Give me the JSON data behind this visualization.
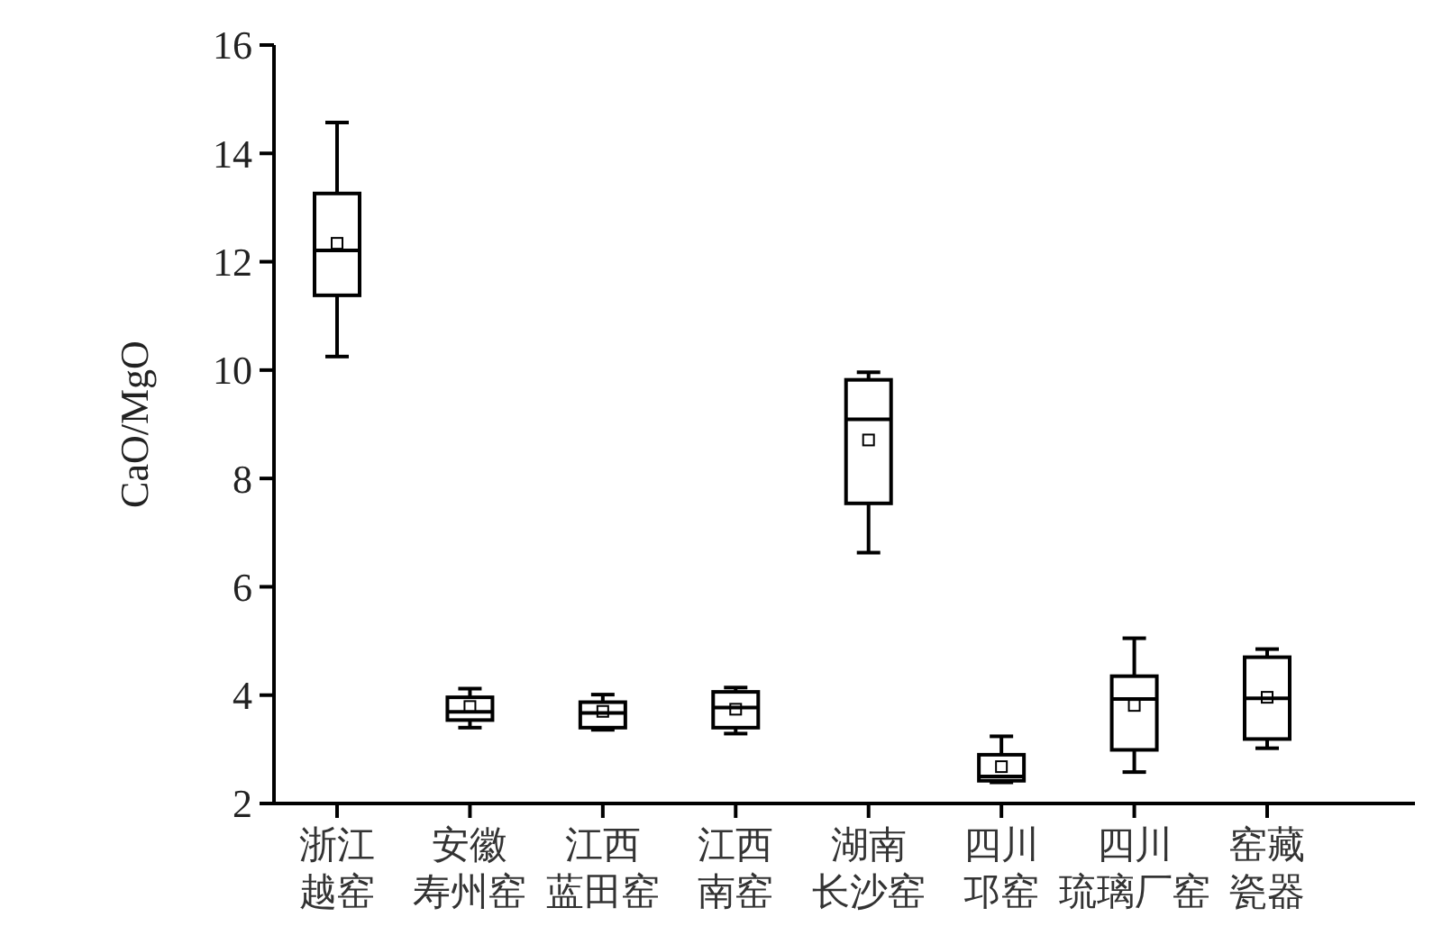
{
  "chart_data": {
    "type": "box",
    "ylabel": "CaO/MgO",
    "categories": [
      "浙江越窑",
      "安徽寿州窑",
      "江西蓝田窑",
      "江西南窑",
      "湖南长沙窑",
      "四川邛窑",
      "四川琉璃厂窑",
      "窑藏瓷器"
    ],
    "boxes": [
      {
        "low": 10.25,
        "q1": 11.38,
        "median": 12.21,
        "q3": 13.26,
        "high": 14.57,
        "mean": 12.34
      },
      {
        "low": 3.4,
        "q1": 3.54,
        "median": 3.69,
        "q3": 3.96,
        "high": 4.12,
        "mean": 3.79
      },
      {
        "low": 3.36,
        "q1": 3.4,
        "median": 3.67,
        "q3": 3.87,
        "high": 4.01,
        "mean": 3.7
      },
      {
        "low": 3.29,
        "q1": 3.4,
        "median": 3.77,
        "q3": 4.06,
        "high": 4.14,
        "mean": 3.74
      },
      {
        "low": 6.63,
        "q1": 7.54,
        "median": 9.09,
        "q3": 9.82,
        "high": 9.96,
        "mean": 8.71
      },
      {
        "low": 2.39,
        "q1": 2.42,
        "median": 2.5,
        "q3": 2.9,
        "high": 3.24,
        "mean": 2.68
      },
      {
        "low": 2.58,
        "q1": 2.99,
        "median": 3.93,
        "q3": 4.35,
        "high": 5.05,
        "mean": 3.81
      },
      {
        "low": 3.02,
        "q1": 3.19,
        "median": 3.94,
        "q3": 4.7,
        "high": 4.85,
        "mean": 3.96
      }
    ],
    "color": "#000000",
    "ylim": [
      2,
      16
    ],
    "yticks": [
      2,
      4,
      6,
      8,
      10,
      12,
      14,
      16
    ],
    "grid": false
  }
}
